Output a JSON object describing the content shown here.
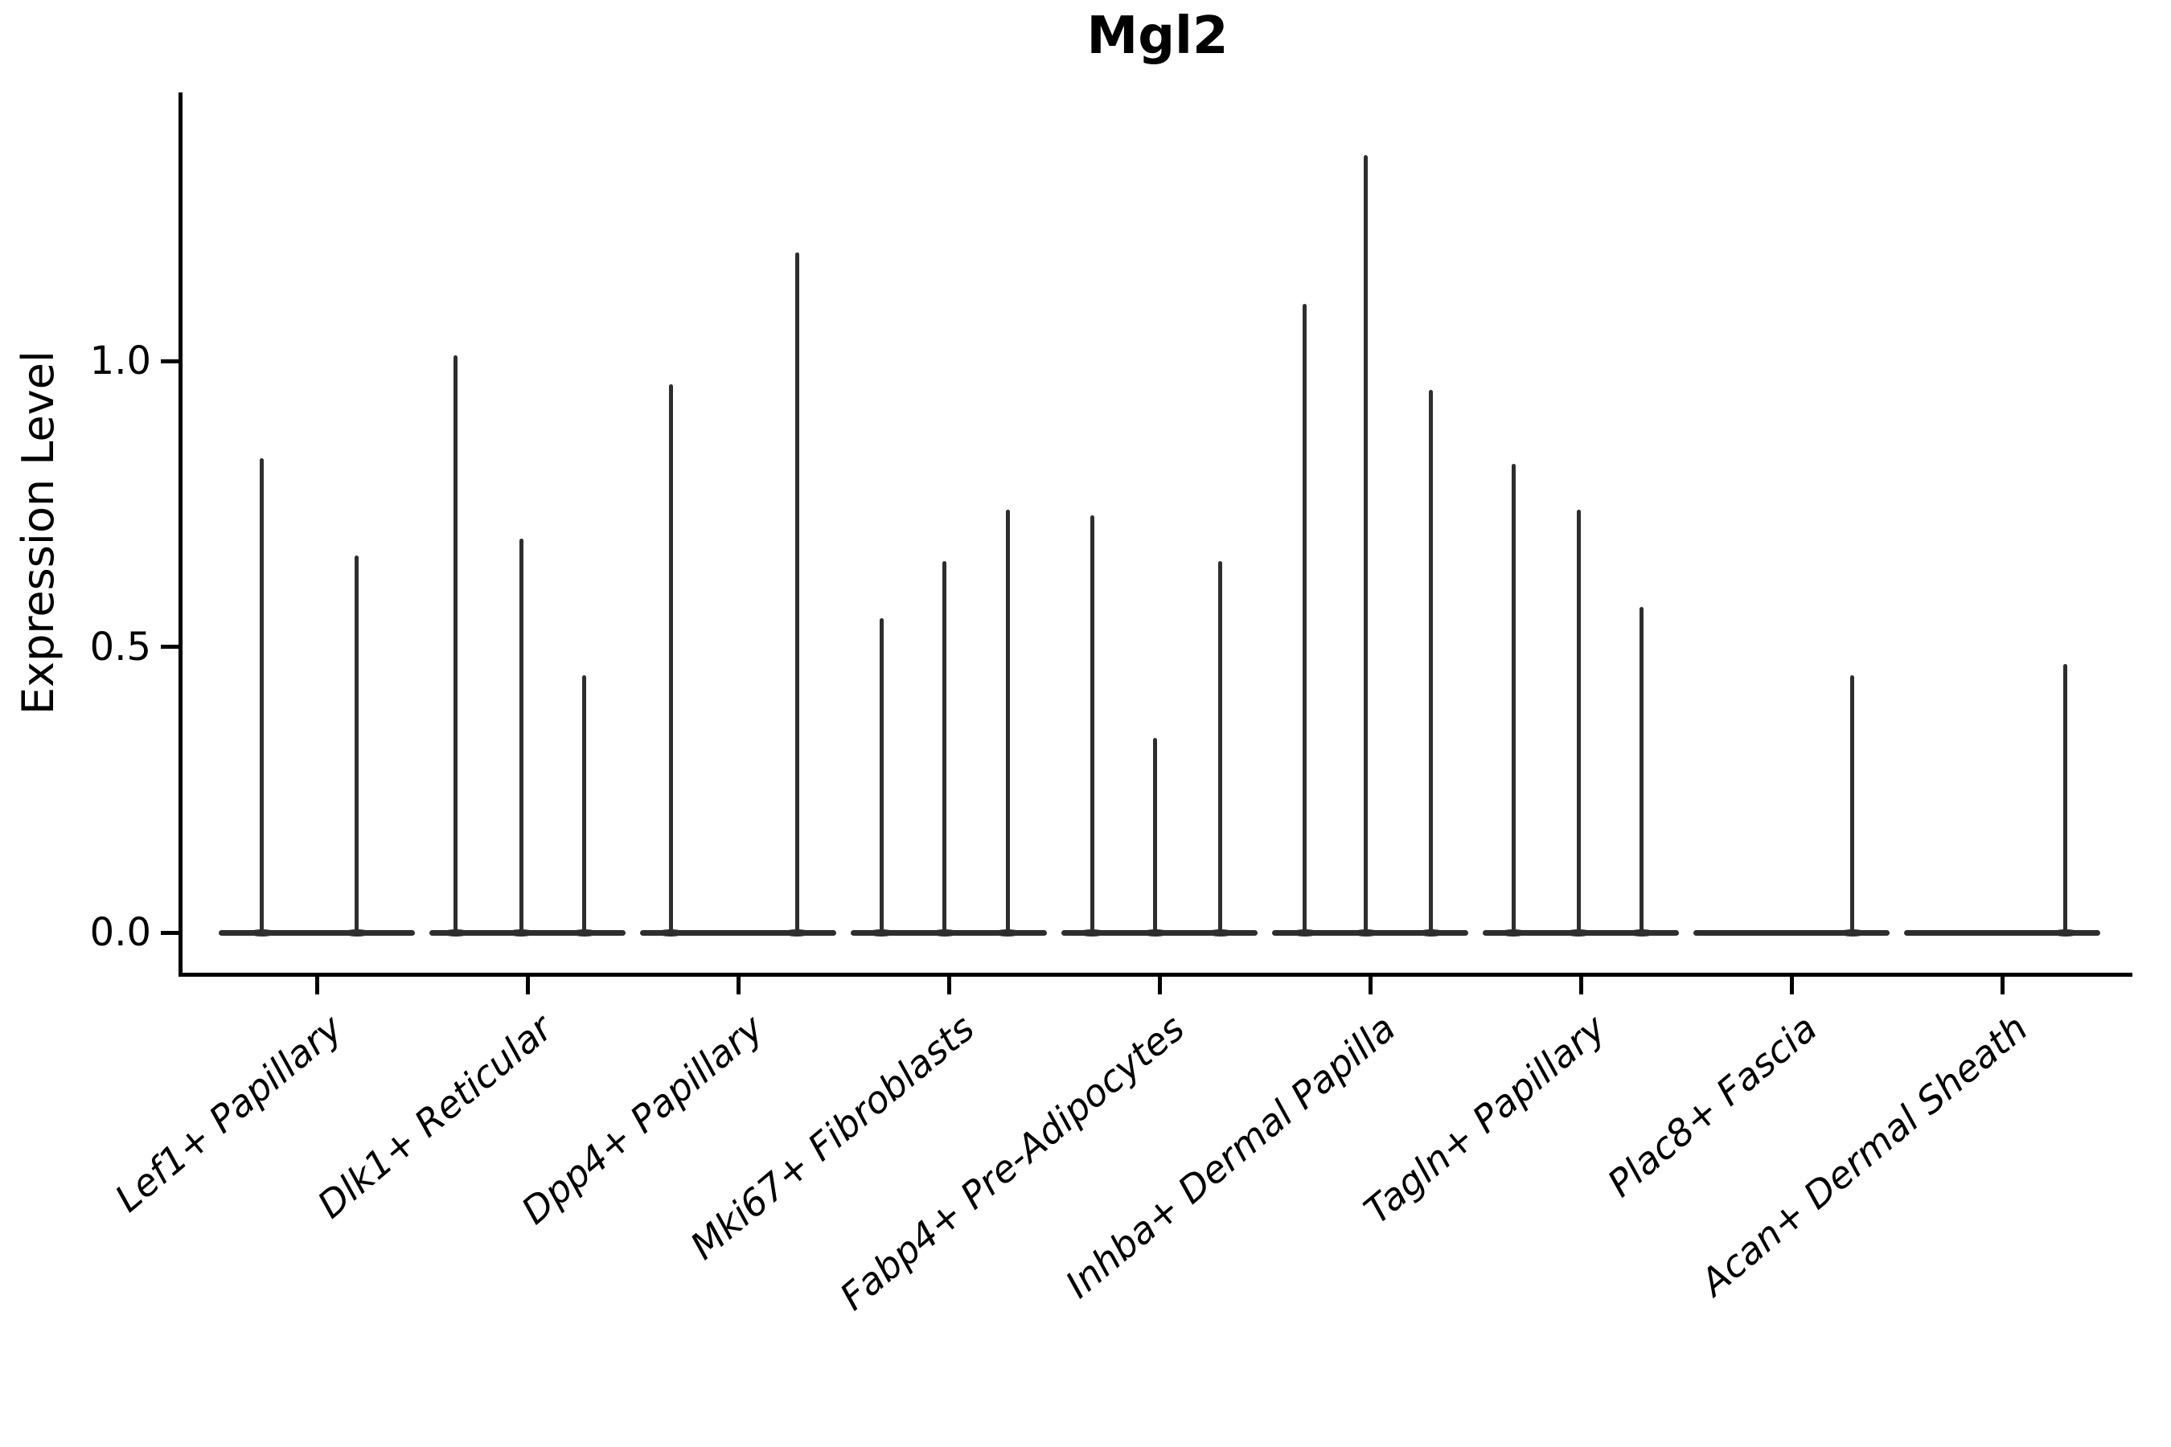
{
  "chart_data": {
    "type": "violin",
    "title": "Mgl2",
    "ylabel": "Expression Level",
    "xlabel": "",
    "grid": false,
    "legend": "none",
    "ylim": [
      -0.07,
      1.47
    ],
    "yticks": [
      {
        "value": 0.0,
        "label": "0.0"
      },
      {
        "value": 0.5,
        "label": "0.5"
      },
      {
        "value": 1.0,
        "label": "1.0"
      }
    ],
    "categories": [
      "Lef1+ Papillary",
      "Dlk1+ Reticular",
      "Dpp4+ Papillary",
      "Mki67+ Fibroblasts",
      "Fabp4+ Pre-Adipocytes",
      "Inhba+ Dermal Papilla",
      "Tagln+ Papillary",
      "Plac8+ Fascia",
      "Acan+ Dermal Sheath"
    ],
    "violin_halfwidth": 0.465,
    "series": [
      {
        "category": "Lef1+ Papillary",
        "spikes": [
          {
            "offset": -0.26,
            "value": 0.83
          },
          {
            "offset": 0.19,
            "value": 0.66
          }
        ]
      },
      {
        "category": "Dlk1+ Reticular",
        "spikes": [
          {
            "offset": -0.34,
            "value": 1.01
          },
          {
            "offset": -0.03,
            "value": 0.69
          },
          {
            "offset": 0.27,
            "value": 0.45
          }
        ]
      },
      {
        "category": "Dpp4+ Papillary",
        "spikes": [
          {
            "offset": -0.32,
            "value": 0.96
          },
          {
            "offset": 0.28,
            "value": 1.19
          }
        ]
      },
      {
        "category": "Mki67+ Fibroblasts",
        "spikes": [
          {
            "offset": -0.32,
            "value": 0.55
          },
          {
            "offset": -0.02,
            "value": 0.65
          },
          {
            "offset": 0.28,
            "value": 0.74
          }
        ]
      },
      {
        "category": "Fabp4+ Pre-Adipocytes",
        "spikes": [
          {
            "offset": -0.32,
            "value": 0.73
          },
          {
            "offset": -0.02,
            "value": 0.34
          },
          {
            "offset": 0.29,
            "value": 0.65
          }
        ]
      },
      {
        "category": "Inhba+ Dermal Papilla",
        "spikes": [
          {
            "offset": -0.31,
            "value": 1.1
          },
          {
            "offset": -0.02,
            "value": 1.36
          },
          {
            "offset": 0.29,
            "value": 0.95
          }
        ]
      },
      {
        "category": "Tagln+ Papillary",
        "spikes": [
          {
            "offset": -0.32,
            "value": 0.82
          },
          {
            "offset": -0.01,
            "value": 0.74
          },
          {
            "offset": 0.29,
            "value": 0.57
          }
        ]
      },
      {
        "category": "Plac8+ Fascia",
        "spikes": [
          {
            "offset": 0.29,
            "value": 0.45
          }
        ]
      },
      {
        "category": "Acan+ Dermal Sheath",
        "spikes": [
          {
            "offset": 0.3,
            "value": 0.47
          }
        ]
      }
    ],
    "colors": {
      "violin": "#2e2e2e",
      "axis": "#000000",
      "background": "#ffffff"
    }
  }
}
